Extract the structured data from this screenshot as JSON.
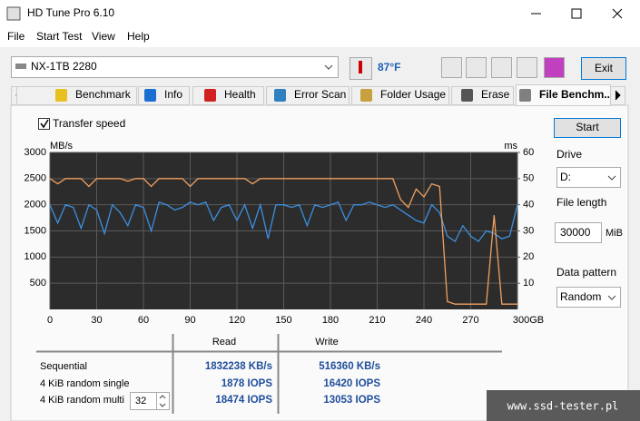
{
  "window": {
    "title": "HD Tune Pro 6.10",
    "menu": [
      "File",
      "Start Test",
      "View",
      "Help"
    ]
  },
  "toolbar": {
    "drive": "NX-1TB 2280",
    "temperature": "87°F",
    "exit": "Exit"
  },
  "tabs": [
    "Benchmark",
    "Info",
    "Health",
    "Error Scan",
    "Folder Usage",
    "Erase",
    "File Benchm..."
  ],
  "options": {
    "transfer_speed": "Transfer speed",
    "start": "Start",
    "drive_label": "Drive",
    "drive": "D:",
    "file_length_label": "File length",
    "file_length": "30000",
    "file_length_unit": "MiB",
    "data_pattern_label": "Data pattern",
    "data_pattern": "Random"
  },
  "chart_data": {
    "type": "line",
    "y_label": "MB/s",
    "y2_label": "ms",
    "x": [
      0,
      5,
      10,
      15,
      20,
      25,
      30,
      35,
      40,
      45,
      50,
      55,
      60,
      65,
      70,
      75,
      80,
      85,
      90,
      95,
      100,
      105,
      110,
      115,
      120,
      125,
      130,
      135,
      140,
      145,
      150,
      155,
      160,
      165,
      170,
      175,
      180,
      185,
      190,
      195,
      200,
      205,
      210,
      215,
      220,
      225,
      230,
      235,
      240,
      245,
      250,
      255,
      260,
      265,
      270,
      275,
      280,
      285,
      290,
      295,
      300
    ],
    "series": [
      {
        "color": "#3c8fe0",
        "values": [
          2000,
          1650,
          2000,
          1950,
          1550,
          2000,
          1900,
          1450,
          2000,
          1850,
          1600,
          2000,
          1950,
          1500,
          2050,
          2000,
          1900,
          1950,
          2050,
          2000,
          2050,
          1700,
          1950,
          2000,
          1700,
          2000,
          1550,
          2000,
          1350,
          2000,
          2000,
          1950,
          2000,
          1600,
          2000,
          1950,
          2000,
          2050,
          1700,
          2000,
          2000,
          2050,
          2000,
          1950,
          2000,
          1900,
          1800,
          1700,
          1650,
          2000,
          1850,
          1400,
          1300,
          1600,
          1400,
          1300,
          1500,
          1450,
          1350,
          1400,
          2000
        ]
      },
      {
        "color": "#f0a060",
        "values": [
          2500,
          2400,
          2500,
          2500,
          2500,
          2350,
          2500,
          2500,
          2500,
          2500,
          2450,
          2500,
          2500,
          2350,
          2500,
          2500,
          2500,
          2500,
          2350,
          2500,
          2500,
          2500,
          2500,
          2500,
          2500,
          2500,
          2400,
          2500,
          2500,
          2500,
          2500,
          2500,
          2500,
          2500,
          2500,
          2500,
          2500,
          2500,
          2500,
          2500,
          2500,
          2500,
          2500,
          2500,
          2500,
          2100,
          1950,
          2300,
          2150,
          2400,
          2350,
          150,
          100,
          100,
          100,
          100,
          100,
          1800,
          100,
          100,
          100
        ]
      }
    ],
    "xlim": [
      0,
      300
    ],
    "xticks": [
      0,
      30,
      60,
      90,
      120,
      150,
      180,
      210,
      240,
      270,
      {
        "value": 300,
        "label": "300GB"
      }
    ],
    "ylim": [
      0,
      3000
    ],
    "yticks": [
      500,
      1000,
      1500,
      2000,
      2500,
      3000
    ],
    "y2lim": [
      0,
      60
    ],
    "y2ticks": [
      10,
      20,
      30,
      40,
      50,
      60
    ],
    "grid": true
  },
  "results": {
    "headers": [
      "Read",
      "Write"
    ],
    "rows": [
      {
        "label": "Sequential",
        "read": "1832238 KB/s",
        "write": "516360 KB/s"
      },
      {
        "label": "4 KiB random single",
        "read": "1878 IOPS",
        "write": "16420 IOPS"
      },
      {
        "label": "4 KiB random multi",
        "queue_depth": "32",
        "read": "18474 IOPS",
        "write": "13053 IOPS"
      }
    ]
  },
  "watermark": "www.ssd-tester.pl"
}
